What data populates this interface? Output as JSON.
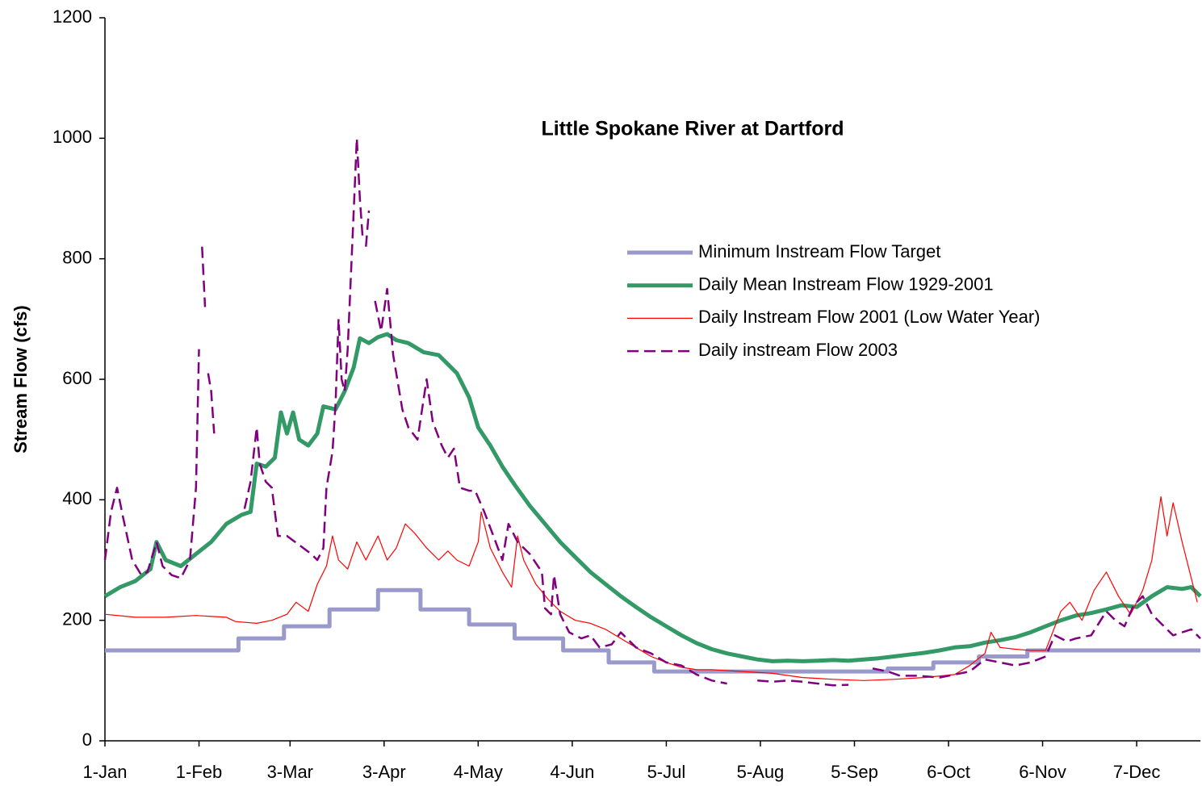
{
  "chart_data": {
    "type": "line",
    "title": "Little Spokane River at Dartford",
    "y_label": "Stream Flow (cfs)",
    "xlim": [
      0,
      361
    ],
    "ylim": [
      0,
      1200
    ],
    "yticks": [
      0,
      200,
      400,
      600,
      800,
      1000,
      1200
    ],
    "xticks": [
      {
        "value": 0,
        "label": "1-Jan"
      },
      {
        "value": 31,
        "label": "1-Feb"
      },
      {
        "value": 61,
        "label": "3-Mar"
      },
      {
        "value": 92,
        "label": "3-Apr"
      },
      {
        "value": 123,
        "label": "4-May"
      },
      {
        "value": 154,
        "label": "4-Jun"
      },
      {
        "value": 185,
        "label": "5-Jul"
      },
      {
        "value": 216,
        "label": "5-Aug"
      },
      {
        "value": 247,
        "label": "5-Sep"
      },
      {
        "value": 278,
        "label": "6-Oct"
      },
      {
        "value": 309,
        "label": "6-Nov"
      },
      {
        "value": 340,
        "label": "7-Dec"
      }
    ],
    "series": [
      {
        "name": "Minimum Instream Flow Target",
        "color": "#9999cc",
        "width": 5,
        "dashed": false,
        "x": [
          0,
          44,
          44,
          59,
          59,
          74,
          74,
          90,
          90,
          104,
          104,
          120,
          120,
          135,
          135,
          151,
          151,
          166,
          166,
          181,
          181,
          258,
          258,
          273,
          273,
          288,
          288,
          304,
          304,
          361
        ],
        "values": [
          150,
          150,
          170,
          170,
          190,
          190,
          218,
          218,
          250,
          250,
          218,
          218,
          193,
          193,
          170,
          170,
          150,
          150,
          130,
          130,
          115,
          115,
          120,
          120,
          130,
          130,
          140,
          140,
          150,
          150
        ]
      },
      {
        "name": "Daily Mean Instream Flow 1929-2001",
        "color": "#339966",
        "width": 5,
        "dashed": false,
        "x": [
          0,
          5,
          10,
          15,
          17,
          20,
          25,
          30,
          35,
          40,
          45,
          48,
          50,
          53,
          56,
          58,
          60,
          62,
          64,
          67,
          70,
          72,
          76,
          79,
          82,
          84,
          87,
          90,
          93,
          96,
          100,
          105,
          110,
          113,
          116,
          120,
          123,
          127,
          131,
          135,
          140,
          145,
          150,
          155,
          160,
          165,
          170,
          175,
          180,
          185,
          190,
          195,
          200,
          205,
          210,
          215,
          220,
          225,
          230,
          235,
          240,
          245,
          250,
          255,
          260,
          265,
          270,
          275,
          280,
          285,
          290,
          295,
          300,
          305,
          310,
          315,
          320,
          325,
          330,
          335,
          340,
          345,
          350,
          355,
          358,
          361
        ],
        "values": [
          240,
          255,
          265,
          285,
          330,
          300,
          290,
          310,
          330,
          360,
          375,
          380,
          460,
          455,
          470,
          545,
          510,
          545,
          500,
          490,
          510,
          555,
          550,
          580,
          620,
          668,
          660,
          670,
          675,
          665,
          660,
          645,
          640,
          625,
          610,
          570,
          520,
          490,
          455,
          425,
          390,
          360,
          330,
          305,
          280,
          260,
          240,
          222,
          205,
          190,
          175,
          162,
          152,
          145,
          140,
          135,
          132,
          133,
          132,
          133,
          134,
          133,
          135,
          137,
          140,
          143,
          146,
          150,
          155,
          157,
          163,
          167,
          172,
          180,
          190,
          200,
          208,
          212,
          218,
          225,
          222,
          240,
          255,
          252,
          255,
          240
        ]
      },
      {
        "name": "Daily Instream Flow 2001 (Low Water Year)",
        "color": "#ff0000",
        "width": 1.2,
        "dashed": false,
        "x": [
          0,
          10,
          20,
          30,
          40,
          43,
          50,
          55,
          60,
          63,
          67,
          70,
          73,
          75,
          77,
          80,
          83,
          86,
          90,
          93,
          96,
          99,
          102,
          106,
          110,
          113,
          116,
          120,
          123,
          124,
          127,
          131,
          134,
          136,
          138,
          142,
          146,
          150,
          155,
          160,
          165,
          170,
          175,
          180,
          185,
          190,
          195,
          200,
          210,
          220,
          230,
          240,
          250,
          260,
          270,
          280,
          285,
          290,
          292,
          295,
          300,
          305,
          310,
          315,
          318,
          322,
          326,
          330,
          334,
          338,
          342,
          345,
          348,
          350,
          352,
          355,
          358,
          360
        ],
        "values": [
          210,
          205,
          205,
          208,
          205,
          198,
          195,
          200,
          210,
          230,
          215,
          260,
          290,
          340,
          300,
          285,
          330,
          300,
          340,
          300,
          320,
          360,
          345,
          320,
          300,
          315,
          300,
          290,
          330,
          380,
          320,
          280,
          255,
          340,
          300,
          260,
          235,
          215,
          200,
          195,
          185,
          170,
          155,
          140,
          130,
          122,
          118,
          118,
          115,
          112,
          105,
          102,
          100,
          102,
          105,
          110,
          125,
          145,
          180,
          155,
          152,
          150,
          150,
          215,
          230,
          200,
          250,
          280,
          240,
          210,
          250,
          300,
          405,
          340,
          395,
          330,
          270,
          230
        ]
      },
      {
        "name": "Daily instream Flow 2003",
        "color": "#800080",
        "width": 2.5,
        "dashed": true,
        "x": [
          0,
          2,
          4,
          6,
          9,
          12,
          14,
          17,
          19,
          22,
          25,
          28,
          30,
          31,
          31.5,
          32,
          33,
          33.5,
          34,
          35,
          36,
          41,
          46,
          48,
          50,
          51,
          53,
          55,
          57,
          60,
          64,
          68,
          70,
          72,
          73,
          75,
          76,
          77,
          78,
          79,
          80,
          82,
          83,
          84,
          85,
          85.5,
          86,
          87,
          88,
          89,
          91,
          93,
          95,
          98,
          100,
          103,
          106,
          108,
          111,
          113,
          115,
          117,
          120,
          122,
          125,
          128,
          131,
          133,
          136,
          140,
          144,
          145,
          147,
          148,
          150,
          153,
          157,
          160,
          163,
          167,
          170,
          175,
          180,
          185,
          190,
          195,
          200,
          205,
          210,
          215,
          220,
          225,
          230,
          235,
          240,
          245,
          249,
          253,
          258,
          262,
          268,
          275,
          280,
          285,
          290,
          295,
          300,
          305,
          310,
          313,
          317,
          320,
          325,
          330,
          333,
          336,
          339,
          342,
          345,
          348,
          352,
          355,
          358,
          361
        ],
        "values": [
          300,
          380,
          420,
          370,
          300,
          275,
          280,
          330,
          290,
          275,
          270,
          300,
          420,
          650,
          null,
          820,
          720,
          null,
          610,
          580,
          510,
          null,
          385,
          430,
          520,
          460,
          430,
          420,
          340,
          340,
          325,
          310,
          300,
          320,
          420,
          480,
          560,
          700,
          600,
          580,
          650,
          880,
          1000,
          900,
          830,
          null,
          820,
          880,
          null,
          730,
          680,
          750,
          640,
          550,
          520,
          500,
          600,
          530,
          490,
          470,
          485,
          420,
          415,
          415,
          380,
          340,
          300,
          360,
          330,
          310,
          280,
          220,
          210,
          275,
          210,
          180,
          170,
          175,
          155,
          160,
          180,
          155,
          145,
          130,
          125,
          110,
          100,
          95,
          null,
          100,
          98,
          100,
          98,
          95,
          92,
          93,
          null,
          120,
          115,
          108,
          108,
          105,
          110,
          115,
          135,
          130,
          125,
          130,
          140,
          175,
          165,
          170,
          175,
          215,
          200,
          190,
          225,
          240,
          210,
          195,
          175,
          180,
          185,
          170
        ]
      }
    ]
  }
}
